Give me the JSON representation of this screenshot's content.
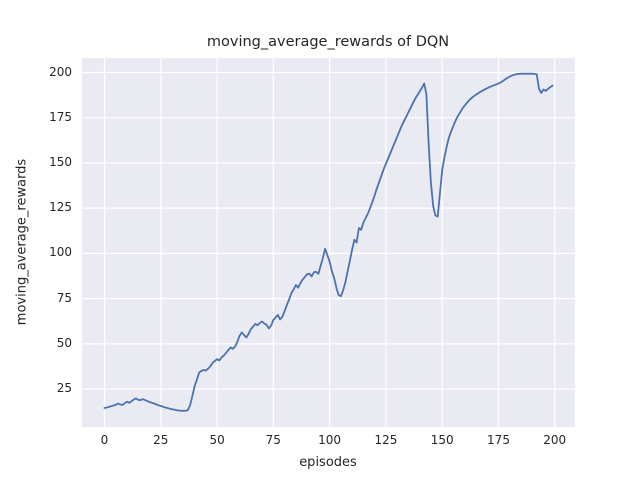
{
  "colors": {
    "figure_background": "#ffffff",
    "plot_background": "#EAEAF2",
    "gridline": "#ffffff",
    "line": "#4C72B0",
    "text": "#262626"
  },
  "chart_data": {
    "type": "line",
    "title": "moving_average_rewards of DQN",
    "xlabel": "episodes",
    "ylabel": "moving_average_rewards",
    "x_ticks": [
      0,
      25,
      50,
      75,
      100,
      125,
      150,
      175,
      200
    ],
    "y_ticks": [
      25,
      50,
      75,
      100,
      125,
      150,
      175,
      200
    ],
    "xlim": [
      -10,
      209
    ],
    "ylim": [
      4,
      208
    ],
    "grid": true,
    "legend": false,
    "line_width": 1.8,
    "series": [
      {
        "name": "moving_average_rewards",
        "color": "#4C72B0",
        "x_rule": "episode = array index (0 to 199)",
        "values": [
          14.5,
          14.8,
          15.1,
          15.5,
          15.9,
          16.3,
          17.0,
          16.4,
          16.2,
          17.2,
          18.0,
          17.4,
          18.2,
          19.2,
          19.8,
          19.0,
          18.8,
          19.4,
          18.9,
          18.3,
          17.8,
          17.4,
          17.0,
          16.5,
          16.0,
          15.6,
          15.2,
          14.8,
          14.5,
          14.1,
          13.8,
          13.6,
          13.3,
          13.1,
          13.0,
          12.9,
          13.0,
          13.3,
          16.0,
          21.0,
          26.5,
          30.0,
          34.0,
          35.0,
          35.5,
          35.2,
          36.3,
          37.5,
          39.5,
          40.5,
          41.5,
          40.8,
          42.5,
          43.5,
          45.0,
          46.5,
          48.0,
          47.2,
          48.5,
          51.0,
          54.5,
          56.3,
          54.8,
          53.5,
          55.5,
          58.0,
          59.5,
          61.0,
          60.2,
          61.5,
          62.3,
          61.2,
          60.5,
          58.5,
          60.0,
          63.2,
          64.5,
          66.0,
          63.5,
          65.0,
          68.0,
          71.5,
          74.5,
          78.0,
          80.0,
          82.5,
          81.0,
          83.5,
          85.5,
          87.0,
          88.5,
          88.8,
          87.2,
          89.5,
          89.8,
          88.7,
          93.0,
          97.5,
          102.5,
          99.0,
          95.5,
          90.0,
          86.5,
          81.0,
          77.0,
          76.3,
          79.5,
          84.0,
          90.0,
          96.0,
          102.0,
          107.5,
          106.0,
          114.0,
          113.0,
          117.0,
          119.5,
          122.0,
          125.0,
          128.5,
          132.0,
          136.0,
          139.5,
          143.0,
          146.5,
          149.5,
          152.5,
          155.5,
          158.5,
          161.5,
          164.5,
          167.5,
          170.5,
          173.0,
          175.5,
          178.0,
          180.5,
          183.0,
          185.5,
          187.5,
          189.5,
          191.5,
          193.9,
          188.0,
          160.0,
          139.0,
          126.0,
          121.0,
          120.3,
          133.0,
          146.0,
          153.0,
          159.0,
          164.0,
          167.5,
          170.5,
          173.5,
          176.0,
          178.0,
          180.0,
          181.7,
          183.2,
          184.6,
          185.8,
          186.8,
          187.7,
          188.5,
          189.3,
          190.0,
          190.7,
          191.3,
          191.9,
          192.4,
          192.9,
          193.4,
          193.9,
          194.5,
          195.3,
          196.2,
          197.0,
          197.7,
          198.3,
          198.7,
          199.0,
          199.2,
          199.3,
          199.3,
          199.3,
          199.3,
          199.3,
          199.3,
          199.2,
          199.0,
          191.0,
          188.7,
          190.6,
          189.8,
          190.9,
          191.9,
          192.7
        ]
      }
    ]
  }
}
